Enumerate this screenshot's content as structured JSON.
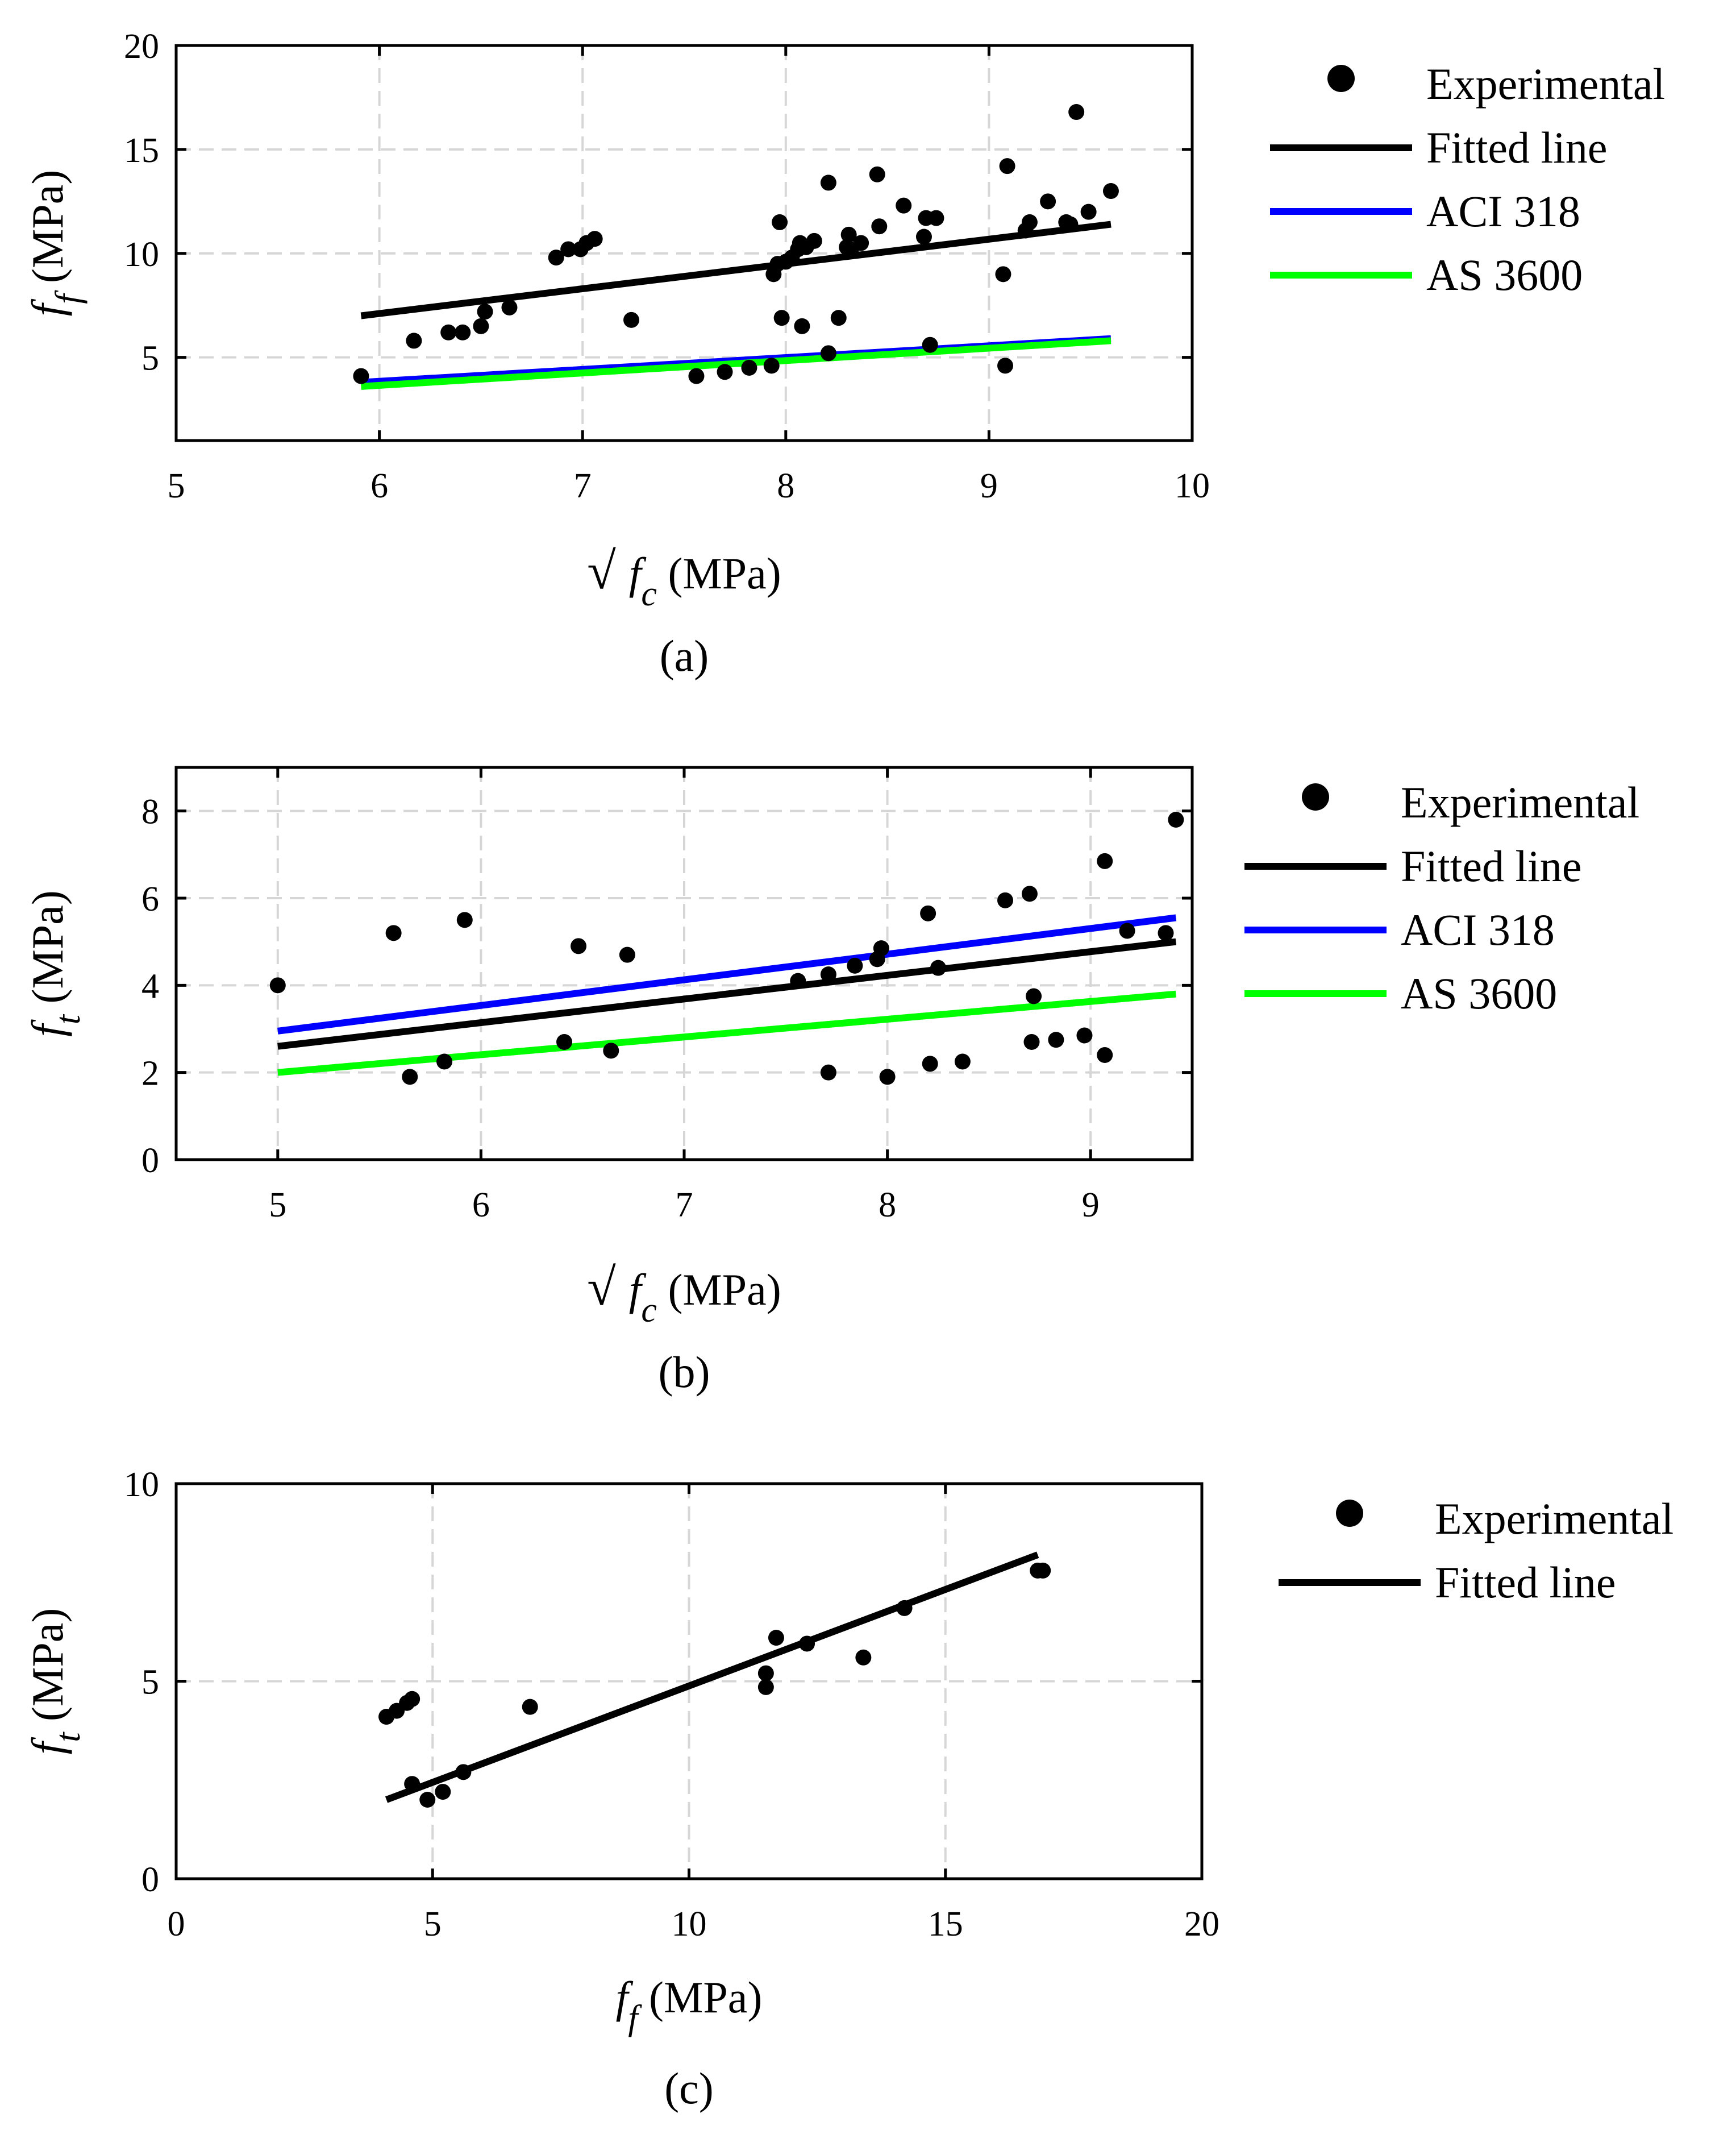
{
  "charts": [
    {
      "caption": "(a)",
      "ylabel": {
        "main": "f",
        "sub": "f",
        "unit": "(MPa)"
      },
      "xlabel": {
        "prefix": "√",
        "main": "f",
        "sub": "c",
        "unit": "(MPa)"
      }
    },
    {
      "caption": "(b)",
      "ylabel": {
        "main": "f",
        "sub": "t",
        "unit": "(MPa)"
      },
      "xlabel": {
        "prefix": "√",
        "main": "f",
        "sub": "c",
        "unit": "(MPa)"
      }
    },
    {
      "caption": "(c)",
      "ylabel": {
        "main": "f",
        "sub": "t",
        "unit": "(MPa)"
      },
      "xlabel": {
        "prefix": "",
        "main": "f",
        "sub": "f",
        "unit": "(MPa)"
      }
    }
  ],
  "colors": {
    "experimental": "#000000",
    "fitted": "#000000",
    "aci": "#0000ff",
    "as": "#00ff00",
    "grid": "#d6d6d6",
    "axis": "#000000"
  },
  "chart_data": [
    {
      "type": "scatter",
      "xlim": [
        5,
        10
      ],
      "ylim": [
        1,
        20
      ],
      "xticks": [
        5,
        6,
        7,
        8,
        9,
        10
      ],
      "yticks": [
        5,
        10,
        15,
        20
      ],
      "grid": true,
      "legend_position": "outside-right",
      "legend": [
        "Experimental",
        "Fitted line",
        "ACI 318",
        "AS 3600"
      ],
      "series": [
        {
          "name": "Experimental",
          "kind": "points",
          "x": [
            5.91,
            6.17,
            6.34,
            6.41,
            6.5,
            6.52,
            6.64,
            6.87,
            6.93,
            6.99,
            7.02,
            7.06,
            7.24,
            7.56,
            7.7,
            7.82,
            7.93,
            7.94,
            7.96,
            7.97,
            7.98,
            8.0,
            8.03,
            8.06,
            8.07,
            8.08,
            8.1,
            8.14,
            8.21,
            8.21,
            8.26,
            8.3,
            8.31,
            8.32,
            8.37,
            8.45,
            8.46,
            8.58,
            8.68,
            8.69,
            8.71,
            8.74,
            9.07,
            9.08,
            9.09,
            9.18,
            9.2,
            9.29,
            9.38,
            9.4,
            9.43,
            9.49,
            9.6
          ],
          "y": [
            4.1,
            5.8,
            6.2,
            6.2,
            6.5,
            7.2,
            7.4,
            9.8,
            10.2,
            10.2,
            10.5,
            10.7,
            6.8,
            4.1,
            4.3,
            4.5,
            4.6,
            9.0,
            9.5,
            11.5,
            6.9,
            9.6,
            9.8,
            10.2,
            10.5,
            6.5,
            10.3,
            10.6,
            5.2,
            13.4,
            6.9,
            10.3,
            10.9,
            10.1,
            10.5,
            13.8,
            11.3,
            12.3,
            10.8,
            11.7,
            5.6,
            11.7,
            9.0,
            4.6,
            14.2,
            11.1,
            11.5,
            12.5,
            11.5,
            11.4,
            16.8,
            12.0,
            13.0
          ]
        },
        {
          "name": "Fitted line",
          "kind": "line",
          "x": [
            5.91,
            9.6
          ],
          "y": [
            7.0,
            11.4
          ]
        },
        {
          "name": "ACI 318",
          "kind": "line",
          "x": [
            5.91,
            9.6
          ],
          "y": [
            3.8,
            5.9
          ]
        },
        {
          "name": "AS 3600",
          "kind": "line",
          "x": [
            5.91,
            9.6
          ],
          "y": [
            3.6,
            5.8
          ]
        }
      ]
    },
    {
      "type": "scatter",
      "xlim": [
        4.5,
        9.5
      ],
      "ylim": [
        0,
        9
      ],
      "xticks": [
        5,
        6,
        7,
        8,
        9
      ],
      "yticks": [
        0,
        2,
        4,
        6,
        8
      ],
      "grid": true,
      "legend_position": "outside-right",
      "legend": [
        "Experimental",
        "Fitted line",
        "ACI 318",
        "AS 3600"
      ],
      "series": [
        {
          "name": "Experimental",
          "kind": "points",
          "x": [
            5.0,
            5.57,
            5.65,
            5.82,
            5.92,
            6.41,
            6.48,
            6.64,
            6.72,
            7.56,
            7.71,
            7.71,
            7.84,
            7.95,
            7.97,
            8.0,
            8.2,
            8.21,
            8.25,
            8.37,
            8.58,
            8.7,
            8.71,
            8.72,
            8.83,
            8.97,
            9.07,
            9.07,
            9.18,
            9.37,
            9.42
          ],
          "y": [
            4.0,
            5.2,
            1.9,
            2.25,
            5.5,
            2.7,
            4.9,
            2.5,
            4.7,
            4.1,
            4.25,
            2.0,
            4.45,
            4.6,
            4.85,
            1.9,
            5.65,
            2.2,
            4.4,
            2.25,
            5.95,
            6.1,
            2.7,
            3.75,
            2.75,
            2.85,
            6.85,
            2.4,
            5.25,
            5.2,
            7.8
          ]
        },
        {
          "name": "Fitted line",
          "kind": "line",
          "x": [
            5.0,
            9.42
          ],
          "y": [
            2.6,
            5.0
          ]
        },
        {
          "name": "ACI 318",
          "kind": "line",
          "x": [
            5.0,
            9.42
          ],
          "y": [
            2.95,
            5.55
          ]
        },
        {
          "name": "AS 3600",
          "kind": "line",
          "x": [
            5.0,
            9.42
          ],
          "y": [
            2.0,
            3.8
          ]
        }
      ]
    },
    {
      "type": "scatter",
      "xlim": [
        0,
        20
      ],
      "ylim": [
        0,
        10
      ],
      "xticks": [
        0,
        5,
        10,
        15,
        20
      ],
      "yticks": [
        0,
        5,
        10
      ],
      "grid": true,
      "legend_position": "outside-right",
      "legend": [
        "Experimental",
        "Fitted line"
      ],
      "series": [
        {
          "name": "Experimental",
          "kind": "points",
          "x": [
            4.1,
            4.3,
            4.5,
            4.6,
            4.6,
            4.9,
            5.2,
            5.6,
            6.9,
            11.5,
            11.5,
            11.7,
            12.3,
            13.4,
            14.2,
            16.8,
            16.9
          ],
          "y": [
            4.1,
            4.25,
            4.45,
            4.55,
            2.4,
            2.0,
            2.2,
            2.7,
            4.35,
            5.2,
            4.85,
            6.1,
            5.95,
            5.6,
            6.85,
            7.8,
            7.8
          ]
        },
        {
          "name": "Fitted line",
          "kind": "line",
          "x": [
            4.1,
            16.8
          ],
          "y": [
            2.0,
            8.2
          ]
        }
      ]
    }
  ]
}
